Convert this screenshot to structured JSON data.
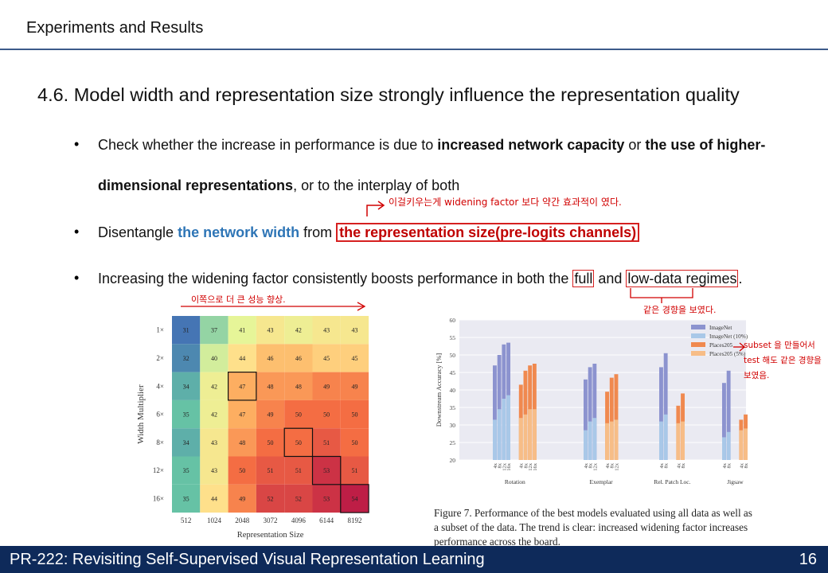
{
  "header": {
    "title": "Experiments and Results"
  },
  "heading": "4.6. Model width and representation size strongly influence the representation quality",
  "bullets": {
    "b1_pre": "Check whether the increase in performance is due to ",
    "b1_bold1": "increased network capacity",
    "b1_mid": " or ",
    "b1_bold2": "the use of higher-",
    "b1_line2_bold": "dimensional representations",
    "b1_line2_rest": ", or to the interplay of both",
    "b2_pre": "Disentangle ",
    "b2_blue": "the network width",
    "b2_mid": " from ",
    "b2_red": "the representation size(pre-logits channels)",
    "b3_pre": "Increasing the widening factor consistently boosts performance in both the ",
    "b3_full": "full",
    "b3_mid": " and ",
    "b3_low": "low-data regimes",
    "b3_end": "."
  },
  "annotations": {
    "note1": "이걸키우는게 widening factor 보다 약간 효과적이 였다.",
    "note2": "이쪽으로 더 큰 성능 향상.",
    "note3": "같은 경향을 보였다.",
    "note4": "subset 을 만들어서 test 해도 같은 경향을 보였음."
  },
  "heatmap": {
    "ylabel": "Width Multiplier",
    "xlabel": "Representation Size",
    "rows": [
      "1×",
      "2×",
      "4×",
      "6×",
      "8×",
      "12×",
      "16×"
    ],
    "cols": [
      "512",
      "1024",
      "2048",
      "3072",
      "4096",
      "6144",
      "8192"
    ],
    "values": [
      [
        31,
        37,
        41,
        43,
        42,
        43,
        43
      ],
      [
        32,
        40,
        44,
        46,
        46,
        45,
        45
      ],
      [
        34,
        42,
        47,
        48,
        48,
        49,
        49
      ],
      [
        35,
        42,
        47,
        49,
        50,
        50,
        50
      ],
      [
        34,
        43,
        48,
        50,
        50,
        51,
        50
      ],
      [
        35,
        43,
        50,
        51,
        51,
        53,
        51
      ],
      [
        35,
        44,
        49,
        52,
        52,
        53,
        54
      ]
    ],
    "boxed": [
      [
        2,
        2
      ],
      [
        4,
        4
      ],
      [
        5,
        5
      ],
      [
        6,
        6
      ]
    ]
  },
  "chart_data": {
    "type": "bar",
    "ylabel": "Downstream Accuracy [%]",
    "ylim": [
      20,
      60
    ],
    "yticks": [
      20,
      25,
      30,
      35,
      40,
      45,
      50,
      55,
      60
    ],
    "legend": [
      "ImageNet",
      "ImageNet (10%)",
      "Places205",
      "Places205 (5%)"
    ],
    "colors": {
      "imagenet": "#8c93cf",
      "imagenet10": "#a9c8e8",
      "places": "#f0894f",
      "places5": "#f7bd87"
    },
    "groups": [
      {
        "name": "Rotation",
        "widths": [
          "4x",
          "8x",
          "12x",
          "16x"
        ],
        "imagenet": [
          47,
          50,
          53,
          53.5
        ],
        "imagenet10": [
          31.5,
          34.5,
          37.5,
          38.5
        ],
        "places": [
          41.5,
          45.5,
          47,
          47.5
        ],
        "places5": [
          32,
          33,
          34.5,
          34.5
        ]
      },
      {
        "name": "Exemplar",
        "widths": [
          "4x",
          "8x",
          "12x"
        ],
        "imagenet": [
          43,
          46.5,
          47.5
        ],
        "imagenet10": [
          28.5,
          31,
          32
        ],
        "places": [
          39.5,
          43.5,
          44.5
        ],
        "places5": [
          30.5,
          31,
          31.5
        ]
      },
      {
        "name": "Rel. Patch Loc.",
        "widths": [
          "4x",
          "8x"
        ],
        "imagenet": [
          46.5,
          50.5
        ],
        "imagenet10": [
          31,
          33
        ],
        "places": [
          35.5,
          39
        ],
        "places5": [
          30.5,
          31
        ]
      },
      {
        "name": "Jigsaw",
        "widths": [
          "4x",
          "8x"
        ],
        "imagenet": [
          42,
          45.5
        ],
        "imagenet10": [
          26.5,
          28
        ],
        "places": [
          31.5,
          33
        ],
        "places5": [
          28.5,
          29
        ]
      }
    ]
  },
  "caption": "Figure 7.  Performance of the best models evaluated using all data as well as a subset of the data. The trend is clear: increased widening factor increases performance across the board.",
  "footer": {
    "title": "PR-222: Revisiting Self-Supervised Visual Representation Learning",
    "page": "16"
  }
}
